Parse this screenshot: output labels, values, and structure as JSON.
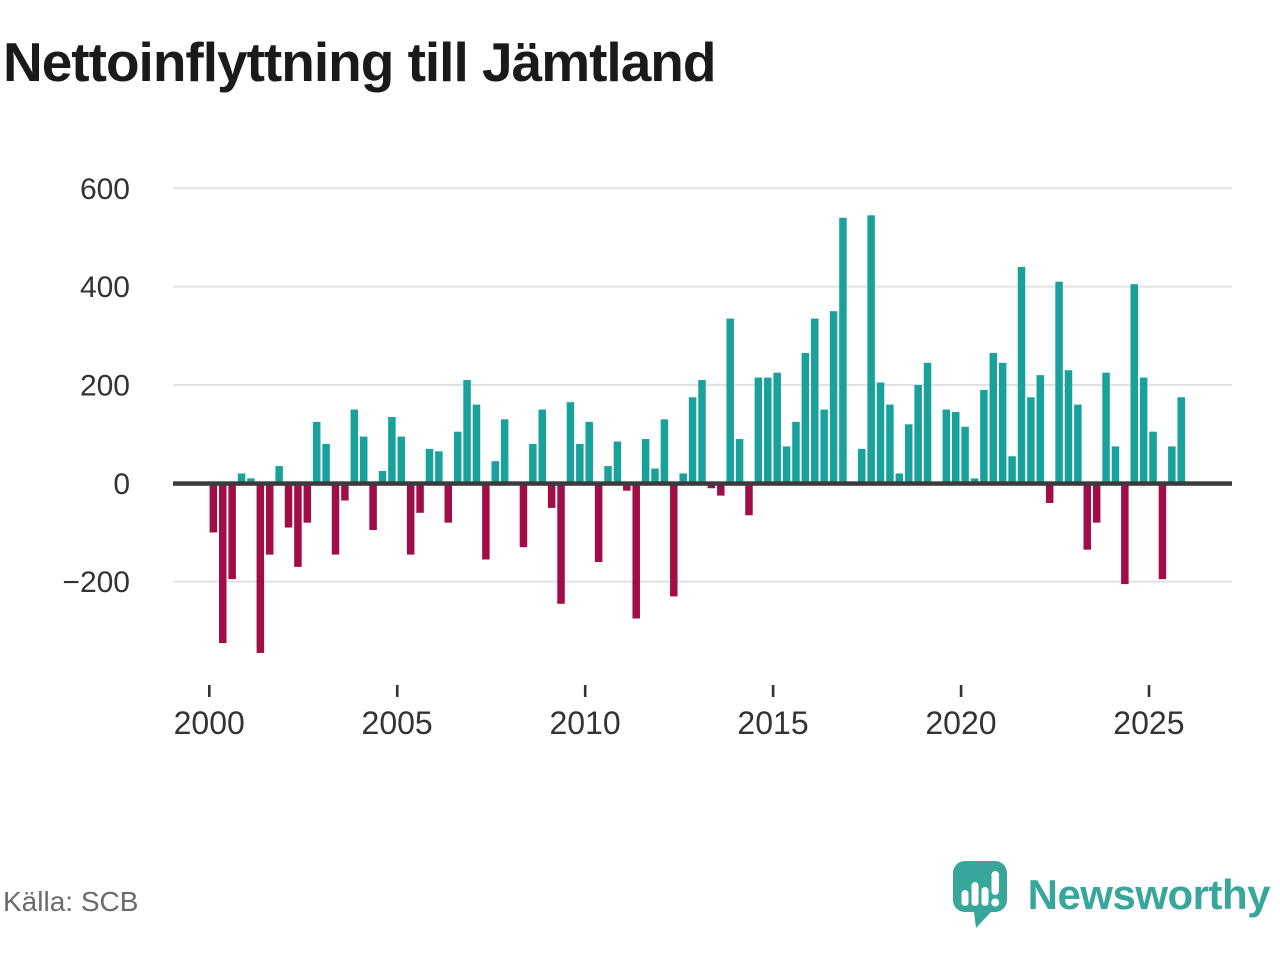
{
  "title": "Nettoinflyttning till Jämtland",
  "source": "Källa: SCB",
  "brand": {
    "name": "Newsworthy"
  },
  "colors": {
    "positive": "#18a29b",
    "negative": "#a00d47",
    "grid": "#e1e1e1",
    "zero_line": "#3b3b3b",
    "axis_text": "#333333",
    "title_text": "#1a1a1a",
    "source_text": "#6b6b6b",
    "brand_teal": "#38a69a"
  },
  "chart_data": {
    "type": "bar",
    "title": "Nettoinflyttning till Jämtland",
    "frequency": "quarterly",
    "start_period": "2000-Q1",
    "end_period": "2025-Q4",
    "ylim": [
      -360,
      620
    ],
    "grid": "horizontal",
    "legend": "none",
    "y_ticks": [
      {
        "v": 600,
        "label": "600"
      },
      {
        "v": 400,
        "label": "400"
      },
      {
        "v": 200,
        "label": "200"
      },
      {
        "v": 0,
        "label": "0"
      },
      {
        "v": -200,
        "label": "−200"
      }
    ],
    "x_ticks": [
      {
        "year": 2000,
        "label": "2000"
      },
      {
        "year": 2005,
        "label": "2005"
      },
      {
        "year": 2010,
        "label": "2010"
      },
      {
        "year": 2015,
        "label": "2015"
      },
      {
        "year": 2020,
        "label": "2020"
      },
      {
        "year": 2025,
        "label": "2025"
      }
    ],
    "series": [
      {
        "name": "Nettoinflyttning",
        "values": [
          -100,
          -325,
          -195,
          20,
          10,
          -345,
          -145,
          35,
          -90,
          -170,
          -80,
          125,
          80,
          -145,
          -35,
          150,
          95,
          -95,
          25,
          135,
          95,
          -145,
          -60,
          70,
          65,
          -80,
          105,
          210,
          160,
          -155,
          45,
          130,
          0,
          -130,
          80,
          150,
          -50,
          -245,
          165,
          80,
          125,
          -160,
          35,
          85,
          -15,
          -275,
          90,
          30,
          130,
          -230,
          20,
          175,
          210,
          -10,
          -25,
          335,
          90,
          -65,
          215,
          215,
          225,
          75,
          125,
          265,
          335,
          150,
          350,
          540,
          0,
          70,
          545,
          205,
          160,
          20,
          120,
          200,
          245,
          0,
          150,
          145,
          115,
          10,
          190,
          265,
          245,
          55,
          440,
          175,
          220,
          -40,
          410,
          230,
          160,
          -135,
          -80,
          225,
          75,
          -205,
          405,
          215,
          105,
          -195,
          75,
          175
        ]
      }
    ]
  }
}
